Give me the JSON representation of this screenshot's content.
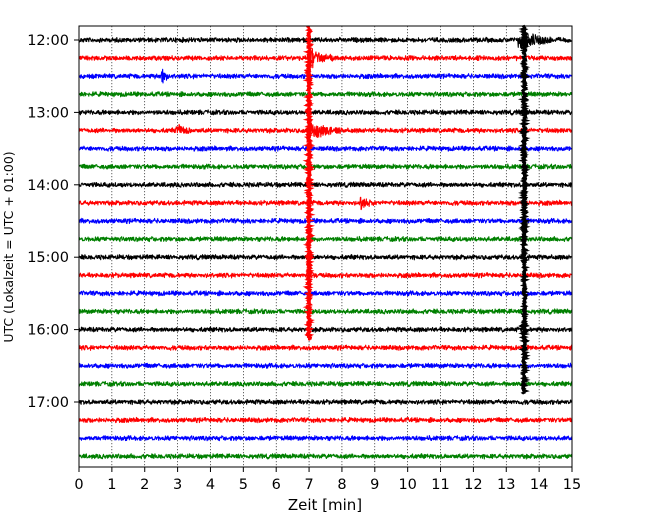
{
  "chart_data": {
    "type": "line",
    "title": "",
    "xlabel": "Zeit  [min]",
    "ylabel": "UTC (Lokalzeit = UTC + 01:00)",
    "xlim": [
      0,
      15
    ],
    "xticks": [
      "0",
      "1",
      "2",
      "3",
      "4",
      "5",
      "6",
      "7",
      "8",
      "9",
      "10",
      "11",
      "12",
      "13",
      "14",
      "15"
    ],
    "yticks": [
      "12:00",
      "13:00",
      "14:00",
      "15:00",
      "16:00",
      "17:00"
    ],
    "grid": "vertical dotted lines at each minute",
    "row_interval_minutes": 15,
    "row_start_times": [
      "12:00",
      "12:15",
      "12:30",
      "12:45",
      "13:00",
      "13:15",
      "13:30",
      "13:45",
      "14:00",
      "14:15",
      "14:30",
      "14:45",
      "15:00",
      "15:15",
      "15:30",
      "15:45",
      "16:00",
      "16:15",
      "16:30",
      "16:45",
      "17:00",
      "17:15",
      "17:30",
      "17:45"
    ],
    "row_colors": [
      "#000000",
      "#ff0000",
      "#0000ff",
      "#008000"
    ],
    "events": [
      {
        "row_start": "12:00",
        "minute": 13.4,
        "duration": 1.0,
        "amplitude": "large"
      },
      {
        "row_start": "12:15",
        "minute": 7.0,
        "duration": 0.8,
        "amplitude": "large"
      },
      {
        "row_start": "12:30",
        "minute": 2.55,
        "duration": 0.15,
        "amplitude": "medium"
      },
      {
        "row_start": "13:15",
        "minute": 7.0,
        "duration": 1.0,
        "amplitude": "large"
      },
      {
        "row_start": "13:15",
        "minute": 3.0,
        "duration": 0.4,
        "amplitude": "small"
      },
      {
        "row_start": "14:15",
        "minute": 8.6,
        "duration": 0.4,
        "amplitude": "small"
      }
    ],
    "vertical_traces": [
      {
        "minute": 7.0,
        "from": "12:00",
        "to": "16:00",
        "color": "#ff0000"
      },
      {
        "minute": 13.55,
        "from": "12:00",
        "to": "16:45",
        "color": "#000000"
      }
    ]
  }
}
